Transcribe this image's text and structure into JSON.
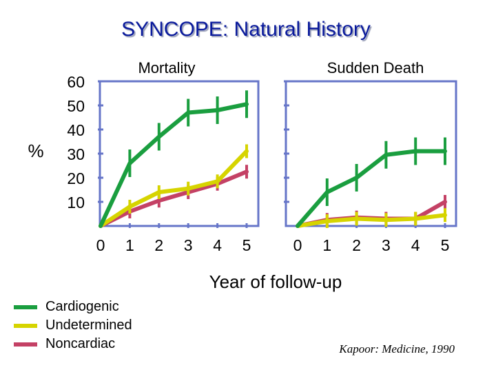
{
  "title": "SYNCOPE:  Natural History",
  "colors": {
    "frame": "#6675c8",
    "cardiogenic": "#1a9e3f",
    "undetermined": "#d6d400",
    "noncardiac": "#c44165"
  },
  "y_unit_label": "%",
  "x_axis_label": "Year of follow-up",
  "citation": "Kapoor:  Medicine, 1990",
  "legend": {
    "items": [
      {
        "label": "Cardiogenic",
        "color": "#1a9e3f"
      },
      {
        "label": "Undetermined",
        "color": "#d6d400"
      },
      {
        "label": "Noncardiac",
        "color": "#c44165"
      }
    ]
  },
  "chart_data": [
    {
      "type": "line",
      "title": "Mortality",
      "xlabel": "Year of follow-up",
      "ylabel": "%",
      "x": [
        0,
        1,
        2,
        3,
        4,
        5
      ],
      "x_tick_labels": [
        "0",
        "1",
        "2",
        "3",
        "4",
        "5"
      ],
      "y_tick_labels": [
        "60",
        "50",
        "40",
        "30",
        "20",
        "10"
      ],
      "ylim": [
        0,
        60
      ],
      "series": [
        {
          "name": "Cardiogenic",
          "color": "#1a9e3f",
          "values": [
            0,
            26,
            37,
            47,
            48,
            50.5
          ]
        },
        {
          "name": "Undetermined",
          "color": "#d6d400",
          "values": [
            0,
            8,
            14,
            15.5,
            18.5,
            31
          ]
        },
        {
          "name": "Noncardiac",
          "color": "#c44165",
          "values": [
            0,
            6,
            10.5,
            14,
            17.5,
            22.5
          ]
        }
      ]
    },
    {
      "type": "line",
      "title": "Sudden Death",
      "xlabel": "Year of follow-up",
      "ylabel": "%",
      "x": [
        0,
        1,
        2,
        3,
        4,
        5
      ],
      "x_tick_labels": [
        "0",
        "1",
        "2",
        "3",
        "4",
        "5"
      ],
      "ylim": [
        0,
        60
      ],
      "series": [
        {
          "name": "Cardiogenic",
          "color": "#1a9e3f",
          "values": [
            0,
            14,
            20,
            29.5,
            31,
            31
          ]
        },
        {
          "name": "Undetermined",
          "color": "#d6d400",
          "values": [
            0,
            2,
            3,
            2.5,
            3,
            4.5
          ]
        },
        {
          "name": "Noncardiac",
          "color": "#c44165",
          "values": [
            0,
            2.5,
            3.5,
            3,
            3,
            10
          ]
        }
      ]
    }
  ]
}
